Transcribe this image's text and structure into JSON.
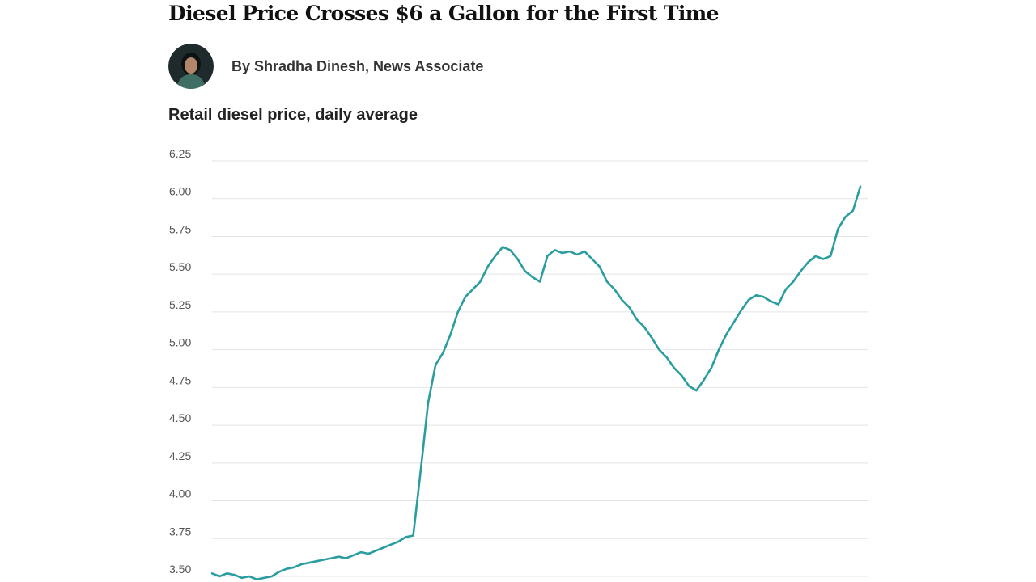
{
  "article": {
    "headline": "Diesel Price Crosses $6 a Gallon for the First Time",
    "byline_prefix": "By ",
    "author_name": "Shradha Dinesh",
    "author_role": ", News Associate",
    "avatar_icon": "person-avatar-icon"
  },
  "colors": {
    "line": "#2a9d9f",
    "grid": "#e4e4e4",
    "text": "#222222"
  },
  "chart_data": {
    "type": "line",
    "title": "Retail diesel price, daily average",
    "xlabel": "",
    "ylabel": "",
    "grid": true,
    "ylim": [
      3.5,
      6.25
    ],
    "yticks": [
      "6.25",
      "6.00",
      "5.75",
      "5.50",
      "5.25",
      "5.00",
      "4.75",
      "4.50",
      "4.25",
      "4.00",
      "3.75",
      "3.50"
    ],
    "series": [
      {
        "values": [
          3.52,
          3.5,
          3.52,
          3.51,
          3.49,
          3.5,
          3.48,
          3.49,
          3.5,
          3.53,
          3.55,
          3.56,
          3.58,
          3.59,
          3.6,
          3.61,
          3.62,
          3.63,
          3.62,
          3.64,
          3.66,
          3.65,
          3.67,
          3.69,
          3.71,
          3.73,
          3.76,
          3.77,
          4.2,
          4.65,
          4.9,
          4.98,
          5.1,
          5.25,
          5.35,
          5.4,
          5.45,
          5.55,
          5.62,
          5.68,
          5.66,
          5.6,
          5.52,
          5.48,
          5.45,
          5.62,
          5.66,
          5.64,
          5.65,
          5.63,
          5.65,
          5.6,
          5.55,
          5.45,
          5.4,
          5.33,
          5.28,
          5.2,
          5.15,
          5.08,
          5.0,
          4.95,
          4.88,
          4.83,
          4.76,
          4.73,
          4.8,
          4.88,
          5.0,
          5.1,
          5.18,
          5.26,
          5.33,
          5.36,
          5.35,
          5.32,
          5.3,
          5.4,
          5.45,
          5.52,
          5.58,
          5.62,
          5.6,
          5.62,
          5.8,
          5.88,
          5.92,
          6.08
        ]
      }
    ]
  }
}
